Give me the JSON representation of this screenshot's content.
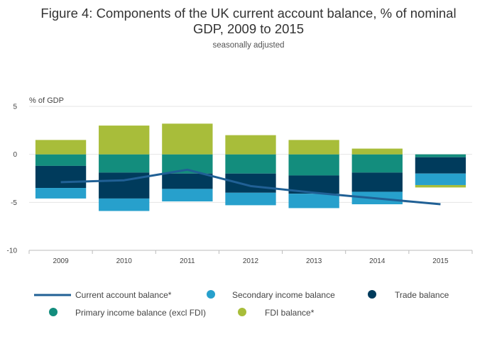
{
  "chart_data": {
    "type": "bar",
    "title_lines": [
      "Figure 4: Components of the UK current account balance, % of nominal",
      "GDP, 2009 to 2015"
    ],
    "subtitle": "seasonally adjusted",
    "ylabel": "% of GDP",
    "ylim": [
      -10,
      5
    ],
    "yticks": [
      5,
      0,
      -5,
      -10
    ],
    "categories": [
      "2009",
      "2010",
      "2011",
      "2012",
      "2013",
      "2014",
      "2015"
    ],
    "series": [
      {
        "name": "Primary income balance (excl FDI)",
        "kind": "bar",
        "color": "#138d7d",
        "values": [
          -1.2,
          -1.9,
          -2.0,
          -2.0,
          -2.2,
          -1.9,
          -0.3
        ]
      },
      {
        "name": "Trade balance",
        "kind": "bar",
        "color": "#003b5c",
        "values": [
          -2.3,
          -2.7,
          -1.6,
          -2.0,
          -1.9,
          -2.0,
          -1.7
        ]
      },
      {
        "name": "Secondary income balance",
        "kind": "bar",
        "color": "#27a0cc",
        "values": [
          -1.1,
          -1.3,
          -1.3,
          -1.3,
          -1.5,
          -1.3,
          -1.2
        ]
      },
      {
        "name": "FDI balance*",
        "kind": "bar",
        "color": "#a8bd3a",
        "values": [
          1.5,
          3.0,
          3.2,
          2.0,
          1.5,
          0.6,
          -0.25
        ]
      },
      {
        "name": "Current account balance*",
        "kind": "line",
        "color": "#206095",
        "values": [
          -2.9,
          -2.7,
          -1.6,
          -3.3,
          -4.0,
          -4.6,
          -5.2
        ]
      }
    ],
    "legend_order": [
      "Current account balance*",
      "Secondary income balance",
      "Trade balance",
      "Primary income balance (excl FDI)",
      "FDI balance*"
    ]
  }
}
